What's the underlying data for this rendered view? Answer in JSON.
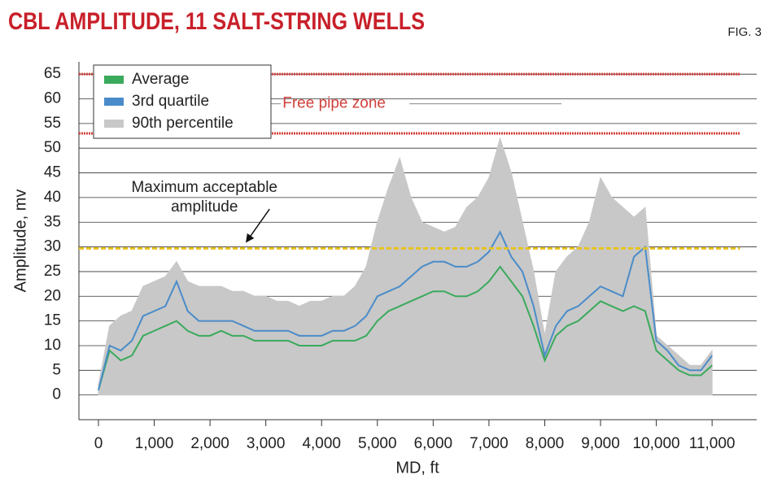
{
  "chart_data": {
    "type": "line",
    "title": "CBL AMPLITUDE, 11 SALT-STRING WELLS",
    "figure_label": "FIG. 3",
    "x_label": "MD, ft",
    "y_label": "Amplitude, mv",
    "xlim": [
      -350,
      11800
    ],
    "ylim": [
      -5,
      67.5
    ],
    "xticks": [
      0,
      {
        "value": 1000,
        "label": "1,000"
      },
      {
        "value": 2000,
        "label": "2,000"
      },
      {
        "value": 3000,
        "label": "3,000"
      },
      {
        "value": 4000,
        "label": "4,000"
      },
      {
        "value": 5000,
        "label": "5,000"
      },
      {
        "value": 6000,
        "label": "6,000"
      },
      {
        "value": 7000,
        "label": "7,000"
      },
      {
        "value": 8000,
        "label": "8,000"
      },
      {
        "value": 9000,
        "label": "9,000"
      },
      {
        "value": 10000,
        "label": "10,000"
      },
      {
        "value": 11000,
        "label": "11,000"
      }
    ],
    "yticks": [
      0,
      5,
      10,
      15,
      20,
      25,
      30,
      35,
      40,
      45,
      50,
      55,
      60,
      65
    ],
    "grid": true,
    "legend": "top-left",
    "x": [
      0,
      200,
      400,
      600,
      800,
      1000,
      1200,
      1400,
      1600,
      1800,
      2000,
      2200,
      2400,
      2600,
      2800,
      3000,
      3200,
      3400,
      3600,
      3800,
      4000,
      4200,
      4400,
      4600,
      4800,
      5000,
      5200,
      5400,
      5600,
      5800,
      6000,
      6200,
      6400,
      6600,
      6800,
      7000,
      7200,
      7400,
      7600,
      7800,
      8000,
      8200,
      8400,
      8600,
      8800,
      9000,
      9200,
      9400,
      9600,
      9800,
      10000,
      10200,
      10400,
      10600,
      10800,
      11000
    ],
    "series": [
      {
        "name": "Average",
        "color": "#3aaa5c",
        "values": [
          1,
          9,
          7,
          8,
          12,
          13,
          14,
          15,
          13,
          12,
          12,
          13,
          12,
          12,
          11,
          11,
          11,
          11,
          10,
          10,
          10,
          11,
          11,
          11,
          12,
          15,
          17,
          18,
          19,
          20,
          21,
          21,
          20,
          20,
          21,
          23,
          26,
          23,
          20,
          14,
          7,
          12,
          14,
          15,
          17,
          19,
          18,
          17,
          18,
          17,
          9,
          7,
          5,
          4,
          4,
          6
        ]
      },
      {
        "name": "3rd quartile",
        "color": "#4a8cc9",
        "values": [
          1,
          10,
          9,
          11,
          16,
          17,
          18,
          23,
          17,
          15,
          15,
          15,
          15,
          14,
          13,
          13,
          13,
          13,
          12,
          12,
          12,
          13,
          13,
          14,
          16,
          20,
          21,
          22,
          24,
          26,
          27,
          27,
          26,
          26,
          27,
          29,
          33,
          28,
          25,
          18,
          8,
          14,
          17,
          18,
          20,
          22,
          21,
          20,
          28,
          30,
          11,
          9,
          6,
          5,
          5,
          8
        ]
      },
      {
        "name": "90th percentile",
        "color": "#c8c8c8",
        "values": [
          2,
          14,
          16,
          17,
          22,
          23,
          24,
          27,
          23,
          22,
          22,
          22,
          21,
          21,
          20,
          20,
          19,
          19,
          18,
          19,
          19,
          20,
          20,
          22,
          26,
          35,
          42,
          48,
          40,
          35,
          34,
          33,
          34,
          38,
          40,
          44,
          52,
          45,
          35,
          25,
          12,
          25,
          28,
          30,
          35,
          44,
          40,
          38,
          36,
          38,
          12,
          10,
          8,
          6,
          6,
          9
        ]
      }
    ],
    "reference_lines": [
      {
        "value": 65,
        "color": "#d0403a"
      },
      {
        "value": 53,
        "color": "#d0403a"
      },
      {
        "value": 29.7,
        "color": "#e8c21a"
      }
    ],
    "annotations": [
      {
        "text": "Free pipe zone",
        "x": 3300,
        "y": 59,
        "color": "#d0403a"
      },
      {
        "text": "Maximum acceptable",
        "x": 1900,
        "y": 42,
        "color": "#222222"
      },
      {
        "text": "amplitude",
        "x": 1900,
        "y": 38,
        "color": "#222222"
      }
    ]
  }
}
